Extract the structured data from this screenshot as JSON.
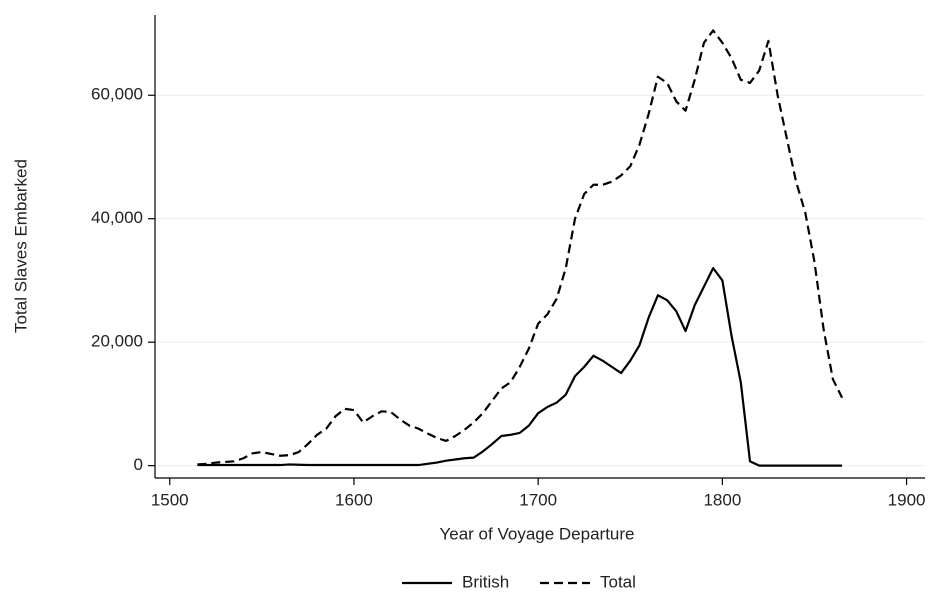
{
  "chart_data": {
    "type": "line",
    "x_label": "Year of Voyage Departure",
    "y_label": "Total Slaves Embarked",
    "x": [
      1515,
      1520,
      1525,
      1530,
      1535,
      1540,
      1545,
      1550,
      1555,
      1560,
      1565,
      1570,
      1575,
      1580,
      1585,
      1590,
      1595,
      1600,
      1605,
      1610,
      1615,
      1620,
      1625,
      1630,
      1635,
      1640,
      1645,
      1650,
      1655,
      1660,
      1665,
      1670,
      1675,
      1680,
      1685,
      1690,
      1695,
      1700,
      1705,
      1710,
      1715,
      1720,
      1725,
      1730,
      1735,
      1740,
      1745,
      1750,
      1755,
      1760,
      1765,
      1770,
      1775,
      1780,
      1785,
      1790,
      1795,
      1800,
      1805,
      1810,
      1815,
      1820,
      1825,
      1830,
      1835,
      1840,
      1845,
      1850,
      1855,
      1860,
      1865
    ],
    "series": [
      {
        "name": "British",
        "color": "#000000",
        "linestyle": "solid",
        "values": [
          100,
          100,
          100,
          100,
          100,
          100,
          100,
          100,
          100,
          100,
          200,
          150,
          100,
          100,
          100,
          100,
          100,
          100,
          100,
          100,
          100,
          100,
          100,
          100,
          100,
          300,
          500,
          800,
          1000,
          1200,
          1300,
          2300,
          3500,
          4800,
          5000,
          5300,
          6500,
          8500,
          9500,
          10200,
          11500,
          14500,
          16000,
          17800,
          17000,
          16000,
          15000,
          17000,
          19500,
          24000,
          27600,
          26800,
          25000,
          21800,
          26000,
          29000,
          32000,
          30000,
          21000,
          13500,
          700,
          0,
          0,
          0,
          0,
          0,
          0,
          0,
          0,
          0,
          0
        ]
      },
      {
        "name": "Total",
        "color": "#000000",
        "linestyle": "dashed",
        "values": [
          200,
          300,
          500,
          600,
          700,
          1200,
          2000,
          2200,
          1900,
          1600,
          1700,
          2200,
          3500,
          5000,
          6000,
          8000,
          9200,
          9000,
          7000,
          8000,
          8800,
          8700,
          7500,
          6500,
          6000,
          5200,
          4500,
          4000,
          4800,
          5800,
          7000,
          8500,
          10500,
          12500,
          13500,
          16000,
          19000,
          23000,
          24500,
          27000,
          32000,
          40000,
          44000,
          45500,
          45500,
          46000,
          47000,
          48500,
          52000,
          57000,
          63000,
          62000,
          59000,
          57500,
          62500,
          68500,
          70500,
          68500,
          66000,
          62500,
          62000,
          64000,
          68800,
          60000,
          53000,
          46000,
          41000,
          33000,
          22000,
          14000,
          11000
        ]
      }
    ],
    "xlim": [
      1492,
      1910
    ],
    "ylim": [
      -2000,
      73000
    ],
    "xticks": [
      1500,
      1600,
      1700,
      1800,
      1900
    ],
    "yticks": [
      0,
      {
        "value": 20000,
        "label": "20,000"
      },
      {
        "value": 40000,
        "label": "40,000"
      },
      {
        "value": 60000,
        "label": "60,000"
      }
    ],
    "grid": true,
    "legend": "bottom"
  }
}
